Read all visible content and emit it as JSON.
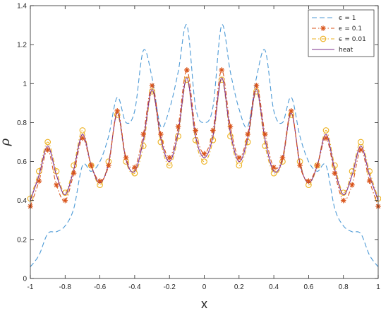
{
  "chart_data": {
    "type": "line",
    "title": "",
    "xlabel": "x",
    "ylabel": "ρ",
    "xlim": [
      -1,
      1
    ],
    "ylim": [
      0,
      1.4
    ],
    "xticks": [
      "-1",
      "-0.8",
      "-0.6",
      "-0.4",
      "-0.2",
      "0",
      "0.2",
      "0.4",
      "0.6",
      "0.8",
      "1"
    ],
    "yticks": [
      "0",
      "0.2",
      "0.4",
      "0.6",
      "0.8",
      "1",
      "1.2",
      "1.4"
    ],
    "grid": false,
    "legend_position": "top-right",
    "series": [
      {
        "name": "ϵ = 1",
        "color": "#4d9ad6",
        "style": "dashed",
        "marker": "none",
        "x": [
          -1.0,
          -0.95,
          -0.9,
          -0.85,
          -0.8,
          -0.75,
          -0.7,
          -0.65,
          -0.6,
          -0.55,
          -0.5,
          -0.45,
          -0.4,
          -0.35,
          -0.3,
          -0.25,
          -0.2,
          -0.15,
          -0.1,
          -0.05,
          0.0,
          0.05,
          0.1,
          0.15,
          0.2,
          0.25,
          0.3,
          0.35,
          0.4,
          0.45,
          0.5,
          0.55,
          0.6,
          0.65,
          0.7,
          0.75,
          0.8,
          0.85,
          0.9,
          0.95,
          1.0
        ],
        "y": [
          0.06,
          0.12,
          0.23,
          0.24,
          0.27,
          0.36,
          0.58,
          0.55,
          0.6,
          0.73,
          0.93,
          0.8,
          0.86,
          1.17,
          1.03,
          0.78,
          0.87,
          1.06,
          1.3,
          0.88,
          0.8,
          0.88,
          1.3,
          1.06,
          0.87,
          0.78,
          1.03,
          1.17,
          0.86,
          0.8,
          0.93,
          0.73,
          0.6,
          0.55,
          0.58,
          0.36,
          0.27,
          0.24,
          0.23,
          0.12,
          0.06
        ]
      },
      {
        "name": "ϵ = 0.1",
        "color": "#d95319",
        "style": "dashdot",
        "marker": "asterisk",
        "x": [
          -1.0,
          -0.95,
          -0.9,
          -0.85,
          -0.8,
          -0.75,
          -0.7,
          -0.65,
          -0.6,
          -0.55,
          -0.5,
          -0.45,
          -0.4,
          -0.35,
          -0.3,
          -0.25,
          -0.2,
          -0.15,
          -0.1,
          -0.05,
          0.0,
          0.05,
          0.1,
          0.15,
          0.2,
          0.25,
          0.3,
          0.35,
          0.4,
          0.45,
          0.5,
          0.55,
          0.6,
          0.65,
          0.7,
          0.75,
          0.8,
          0.85,
          0.9,
          0.95,
          1.0
        ],
        "y": [
          0.37,
          0.5,
          0.66,
          0.48,
          0.4,
          0.54,
          0.72,
          0.58,
          0.5,
          0.58,
          0.86,
          0.62,
          0.57,
          0.74,
          0.99,
          0.74,
          0.62,
          0.78,
          1.07,
          0.76,
          0.64,
          0.76,
          1.07,
          0.78,
          0.62,
          0.74,
          0.99,
          0.74,
          0.57,
          0.62,
          0.86,
          0.58,
          0.5,
          0.58,
          0.72,
          0.54,
          0.4,
          0.48,
          0.66,
          0.5,
          0.37
        ]
      },
      {
        "name": "ϵ = 0.01",
        "color": "#edb120",
        "style": "dashdot",
        "marker": "circle",
        "x": [
          -1.0,
          -0.95,
          -0.9,
          -0.85,
          -0.8,
          -0.75,
          -0.7,
          -0.65,
          -0.6,
          -0.55,
          -0.5,
          -0.45,
          -0.4,
          -0.35,
          -0.3,
          -0.25,
          -0.2,
          -0.15,
          -0.1,
          -0.05,
          0.0,
          0.05,
          0.1,
          0.15,
          0.2,
          0.25,
          0.3,
          0.35,
          0.4,
          0.45,
          0.5,
          0.55,
          0.6,
          0.65,
          0.7,
          0.75,
          0.8,
          0.85,
          0.9,
          0.95,
          1.0
        ],
        "y": [
          0.41,
          0.55,
          0.7,
          0.55,
          0.44,
          0.58,
          0.76,
          0.58,
          0.48,
          0.6,
          0.84,
          0.6,
          0.54,
          0.68,
          0.96,
          0.7,
          0.58,
          0.73,
          1.02,
          0.71,
          0.6,
          0.71,
          1.02,
          0.73,
          0.58,
          0.7,
          0.96,
          0.68,
          0.54,
          0.6,
          0.84,
          0.6,
          0.48,
          0.58,
          0.76,
          0.58,
          0.44,
          0.55,
          0.7,
          0.55,
          0.41
        ]
      },
      {
        "name": "heat",
        "color": "#7e2f8e",
        "style": "solid",
        "marker": "none",
        "x": [
          -1.0,
          -0.95,
          -0.9,
          -0.85,
          -0.8,
          -0.75,
          -0.7,
          -0.65,
          -0.6,
          -0.55,
          -0.5,
          -0.45,
          -0.4,
          -0.35,
          -0.3,
          -0.25,
          -0.2,
          -0.15,
          -0.1,
          -0.05,
          0.0,
          0.05,
          0.1,
          0.15,
          0.2,
          0.25,
          0.3,
          0.35,
          0.4,
          0.45,
          0.5,
          0.55,
          0.6,
          0.65,
          0.7,
          0.75,
          0.8,
          0.85,
          0.9,
          0.95,
          1.0
        ],
        "y": [
          0.4,
          0.53,
          0.68,
          0.53,
          0.43,
          0.56,
          0.74,
          0.58,
          0.49,
          0.59,
          0.85,
          0.61,
          0.55,
          0.71,
          0.97,
          0.72,
          0.6,
          0.75,
          1.03,
          0.73,
          0.62,
          0.73,
          1.03,
          0.75,
          0.6,
          0.72,
          0.97,
          0.71,
          0.55,
          0.61,
          0.85,
          0.59,
          0.49,
          0.58,
          0.74,
          0.56,
          0.43,
          0.53,
          0.68,
          0.53,
          0.4
        ]
      }
    ]
  }
}
